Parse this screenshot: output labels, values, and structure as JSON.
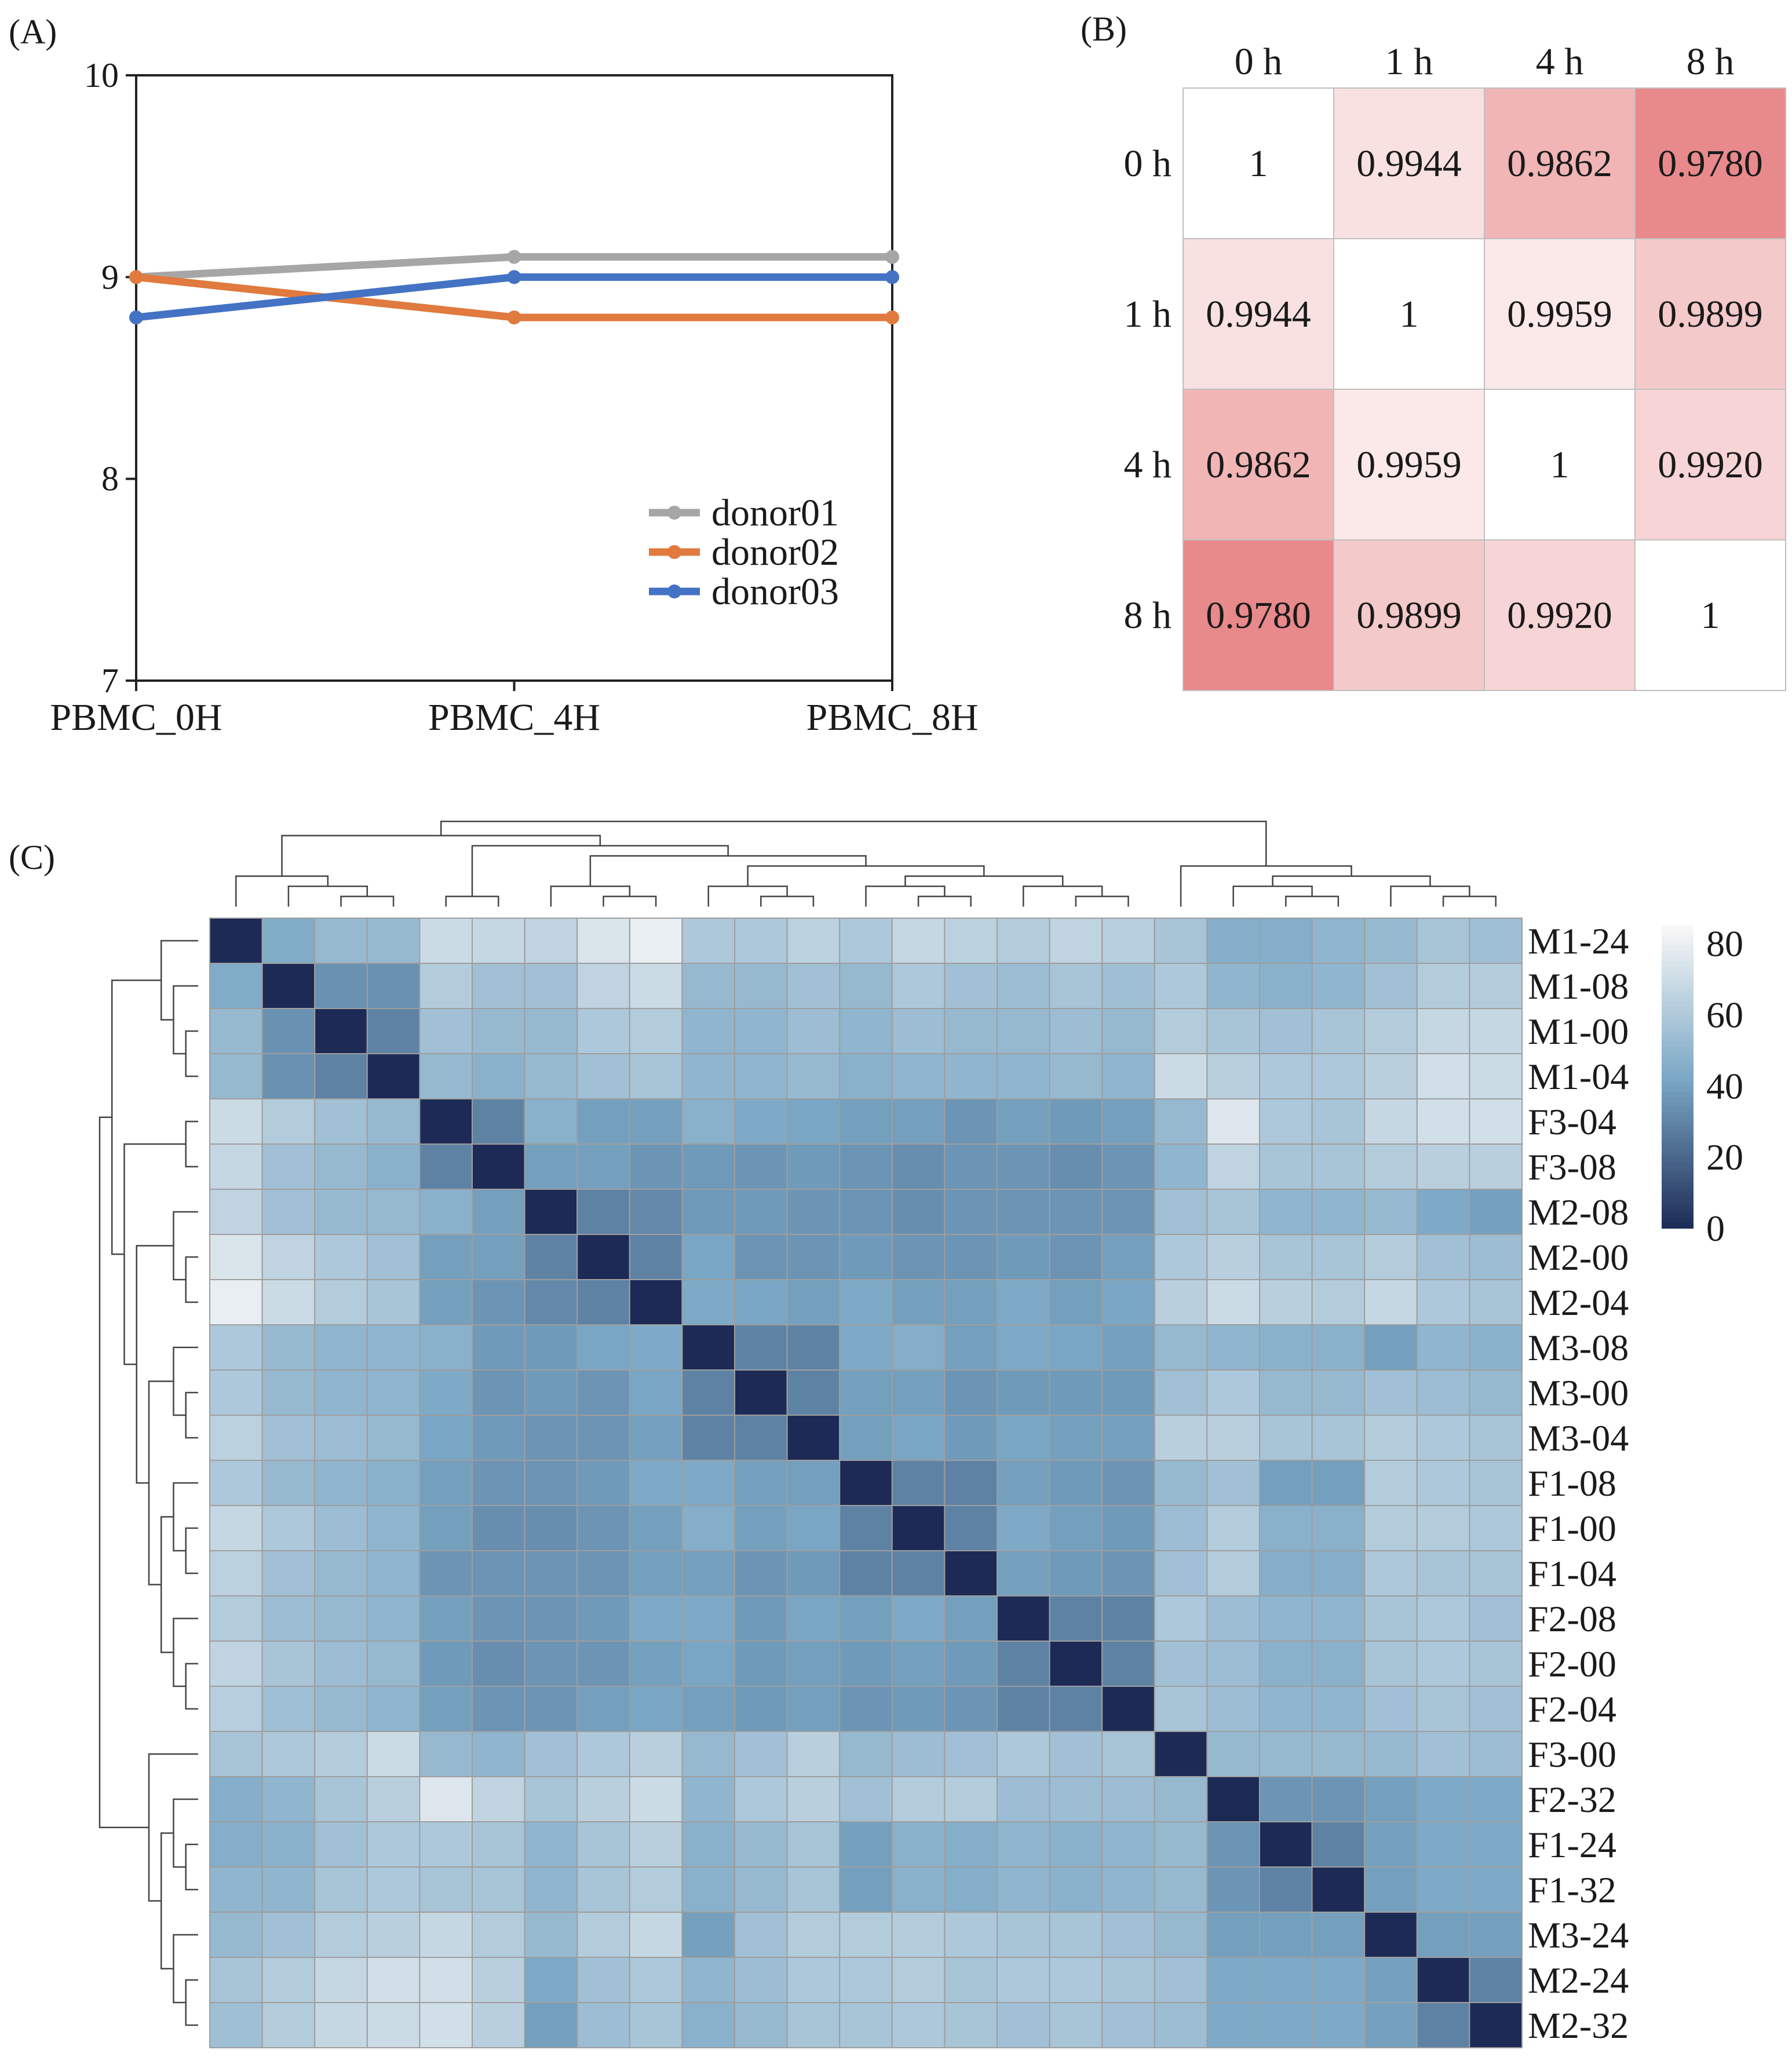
{
  "panels": {
    "a": "(A)",
    "b": "(B)",
    "c": "(C)"
  },
  "chart_data": [
    {
      "type": "line",
      "panel": "A",
      "categories": [
        "PBMC_0H",
        "PBMC_4H",
        "PBMC_8H"
      ],
      "ylim": [
        7,
        10
      ],
      "yticks": [
        "7",
        "8",
        "9",
        "10"
      ],
      "legend_position": "center-right",
      "series": [
        {
          "name": "donor01",
          "color": "#a6a6a6",
          "values": [
            9.0,
            9.1,
            9.1
          ]
        },
        {
          "name": "donor02",
          "color": "#e07a3e",
          "values": [
            9.0,
            8.8,
            8.8
          ]
        },
        {
          "name": "donor03",
          "color": "#4472c4",
          "values": [
            8.8,
            9.0,
            9.0
          ]
        }
      ]
    },
    {
      "type": "heatmap",
      "panel": "B",
      "labels": [
        "0 h",
        "1 h",
        "4 h",
        "8 h"
      ],
      "matrix": [
        [
          "1",
          "0.9944",
          "0.9862",
          "0.9780"
        ],
        [
          "0.9944",
          "1",
          "0.9959",
          "0.9899"
        ],
        [
          "0.9862",
          "0.9959",
          "1",
          "0.9920"
        ],
        [
          "0.9780",
          "0.9899",
          "0.9920",
          "1"
        ]
      ],
      "colors": {
        "high": "#ffffff",
        "low": "#e8898b"
      }
    },
    {
      "type": "heatmap",
      "panel": "C",
      "row_labels": [
        "M1-24",
        "M1-08",
        "M1-00",
        "M1-04",
        "F3-04",
        "F3-08",
        "M2-08",
        "M2-00",
        "M2-04",
        "M3-08",
        "M3-00",
        "M3-04",
        "F1-08",
        "F1-00",
        "F1-04",
        "F2-08",
        "F2-00",
        "F2-04",
        "F3-00",
        "F2-32",
        "F1-24",
        "F1-32",
        "M3-24",
        "M2-24",
        "M2-32"
      ],
      "colorbar": {
        "ticks": [
          "80",
          "60",
          "40",
          "20",
          "0"
        ],
        "range": [
          0,
          85
        ],
        "low_color": "#1c2a55",
        "mid_color": "#7aa7c5",
        "high_color": "#f7f7f7"
      },
      "row_dendrogram_order": "matches row_labels",
      "column_dendrogram_order": "matches row_labels",
      "values": [
        [
          0,
          45,
          52,
          52,
          70,
          68,
          66,
          75,
          80,
          60,
          60,
          65,
          60,
          68,
          65,
          62,
          66,
          63,
          58,
          46,
          46,
          50,
          52,
          58,
          55
        ],
        [
          45,
          0,
          35,
          35,
          62,
          56,
          56,
          66,
          70,
          52,
          52,
          56,
          52,
          60,
          56,
          54,
          58,
          55,
          60,
          50,
          48,
          50,
          56,
          62,
          62
        ],
        [
          52,
          35,
          0,
          30,
          56,
          52,
          52,
          60,
          62,
          50,
          50,
          54,
          50,
          54,
          52,
          52,
          54,
          52,
          62,
          58,
          56,
          58,
          62,
          68,
          68
        ],
        [
          52,
          35,
          30,
          0,
          52,
          48,
          52,
          56,
          58,
          50,
          50,
          52,
          48,
          50,
          50,
          50,
          52,
          50,
          70,
          64,
          60,
          60,
          64,
          72,
          70
        ],
        [
          70,
          62,
          56,
          52,
          0,
          30,
          48,
          40,
          40,
          48,
          44,
          42,
          40,
          40,
          36,
          40,
          38,
          40,
          52,
          76,
          60,
          58,
          68,
          72,
          72
        ],
        [
          68,
          56,
          52,
          48,
          30,
          0,
          40,
          40,
          36,
          38,
          36,
          38,
          36,
          34,
          36,
          36,
          34,
          36,
          50,
          66,
          58,
          58,
          62,
          64,
          64
        ],
        [
          66,
          56,
          52,
          52,
          48,
          40,
          0,
          30,
          32,
          38,
          38,
          36,
          36,
          34,
          36,
          36,
          36,
          36,
          56,
          58,
          50,
          50,
          52,
          44,
          40
        ],
        [
          75,
          66,
          60,
          56,
          40,
          40,
          30,
          0,
          30,
          42,
          36,
          36,
          38,
          36,
          36,
          38,
          36,
          40,
          60,
          64,
          58,
          58,
          62,
          56,
          54
        ],
        [
          80,
          70,
          62,
          58,
          40,
          36,
          32,
          30,
          0,
          44,
          42,
          40,
          44,
          40,
          40,
          44,
          40,
          42,
          64,
          70,
          64,
          62,
          68,
          60,
          58
        ],
        [
          60,
          52,
          50,
          50,
          48,
          38,
          38,
          42,
          44,
          0,
          30,
          30,
          44,
          46,
          40,
          44,
          42,
          40,
          52,
          50,
          48,
          48,
          40,
          50,
          48
        ],
        [
          60,
          52,
          50,
          50,
          44,
          36,
          38,
          36,
          42,
          30,
          0,
          30,
          40,
          40,
          36,
          38,
          38,
          38,
          56,
          60,
          52,
          52,
          56,
          54,
          52
        ],
        [
          65,
          56,
          54,
          52,
          42,
          38,
          36,
          36,
          40,
          30,
          30,
          0,
          40,
          42,
          38,
          42,
          40,
          40,
          64,
          64,
          58,
          58,
          62,
          60,
          58
        ],
        [
          60,
          52,
          50,
          48,
          40,
          36,
          36,
          38,
          44,
          44,
          40,
          40,
          0,
          30,
          30,
          40,
          38,
          36,
          52,
          56,
          40,
          40,
          62,
          60,
          58
        ],
        [
          68,
          60,
          54,
          50,
          40,
          34,
          34,
          36,
          40,
          46,
          40,
          42,
          30,
          0,
          30,
          44,
          40,
          38,
          54,
          62,
          48,
          48,
          62,
          62,
          60
        ],
        [
          65,
          56,
          52,
          50,
          36,
          36,
          36,
          36,
          40,
          40,
          36,
          38,
          30,
          30,
          0,
          40,
          38,
          36,
          56,
          62,
          46,
          46,
          60,
          58,
          58
        ],
        [
          62,
          54,
          52,
          50,
          40,
          36,
          36,
          38,
          44,
          44,
          38,
          42,
          40,
          44,
          40,
          0,
          30,
          30,
          60,
          54,
          50,
          50,
          58,
          60,
          56
        ],
        [
          66,
          58,
          54,
          52,
          38,
          34,
          36,
          36,
          40,
          42,
          38,
          40,
          38,
          40,
          38,
          30,
          0,
          30,
          56,
          54,
          48,
          48,
          58,
          60,
          58
        ],
        [
          63,
          55,
          52,
          50,
          40,
          36,
          36,
          40,
          42,
          40,
          38,
          40,
          36,
          38,
          36,
          30,
          30,
          0,
          58,
          54,
          50,
          50,
          56,
          58,
          56
        ],
        [
          58,
          60,
          62,
          70,
          52,
          50,
          56,
          60,
          64,
          52,
          56,
          64,
          52,
          54,
          56,
          60,
          56,
          58,
          0,
          52,
          52,
          52,
          52,
          56,
          54
        ],
        [
          46,
          50,
          58,
          64,
          76,
          66,
          58,
          64,
          70,
          50,
          60,
          64,
          56,
          62,
          62,
          54,
          54,
          54,
          52,
          0,
          36,
          36,
          40,
          44,
          44
        ],
        [
          46,
          48,
          56,
          60,
          60,
          58,
          50,
          58,
          64,
          48,
          52,
          58,
          40,
          48,
          46,
          50,
          48,
          50,
          52,
          36,
          0,
          30,
          40,
          44,
          44
        ],
        [
          50,
          50,
          58,
          60,
          58,
          58,
          50,
          58,
          62,
          48,
          52,
          58,
          40,
          48,
          46,
          50,
          48,
          50,
          52,
          36,
          30,
          0,
          40,
          44,
          44
        ],
        [
          52,
          56,
          62,
          64,
          68,
          62,
          52,
          62,
          68,
          40,
          56,
          62,
          62,
          62,
          60,
          58,
          58,
          56,
          52,
          40,
          40,
          40,
          0,
          40,
          40
        ],
        [
          58,
          62,
          68,
          72,
          72,
          64,
          44,
          56,
          60,
          50,
          54,
          60,
          60,
          62,
          58,
          60,
          60,
          58,
          56,
          44,
          44,
          44,
          40,
          0,
          30
        ],
        [
          55,
          62,
          68,
          70,
          72,
          64,
          40,
          54,
          58,
          48,
          52,
          58,
          58,
          60,
          58,
          56,
          58,
          56,
          54,
          44,
          44,
          44,
          40,
          30,
          0
        ]
      ]
    }
  ]
}
